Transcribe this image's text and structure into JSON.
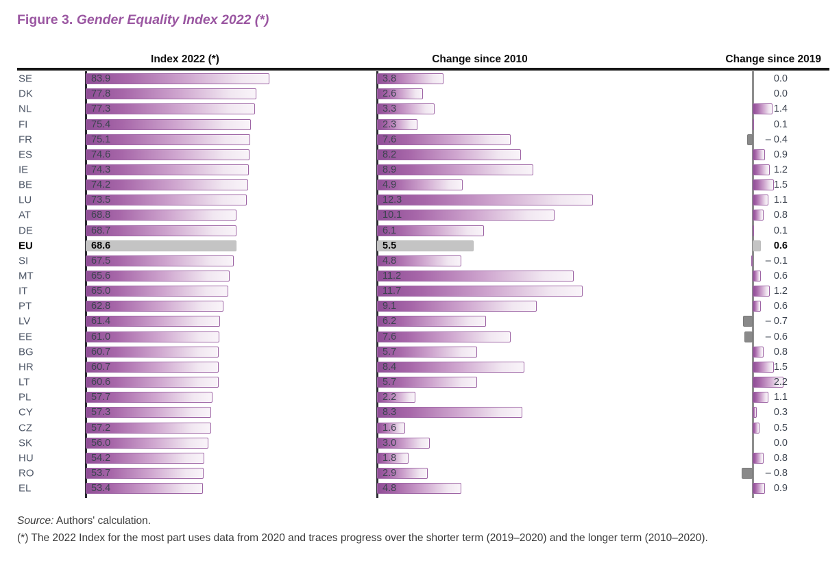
{
  "title": {
    "prefix": "Figure 3.",
    "main": " Gender Equality Index 2022 (*)"
  },
  "headers": {
    "col1": "Index 2022 (*)",
    "col2": "Change since 2010",
    "col3": "Change since 2019"
  },
  "footer": {
    "source_label": "Source:",
    "source_text": " Authors' calculation.",
    "footnote": "(*) The 2022 Index for the most part uses data from 2020 and traces progress over the shorter term (2019–2020) and the longer term (2010–2020)."
  },
  "colors": {
    "title": "#9a56a1",
    "bar_border": "#9d64a4",
    "bar_gradient_start": "#8f4e96",
    "bar_gradient_end": "#f9f4f9",
    "eu_bar": "#c4c4c4",
    "negative_bar": "#898989",
    "axis_dark": "#2a2a30",
    "axis_gray": "#8e8e8e",
    "value_text": "#3d4450",
    "row_label_text": "#4c5565",
    "header_text": "#101010",
    "footnote_text": "#3a3a3a"
  },
  "chart_data": {
    "type": "bar",
    "orientation": "horizontal",
    "title": "Gender Equality Index 2022 (*)",
    "column_headers": [
      "Index 2022 (*)",
      "Change since 2010",
      "Change since 2019"
    ],
    "highlight_row": "EU",
    "legend": "none",
    "grid": false,
    "xlim": {
      "index_2022": [
        0,
        85
      ],
      "change_2010": [
        0,
        12.5
      ],
      "change_2019": [
        -1.0,
        2.5
      ]
    },
    "value_label_format": "one-decimal, negatives shown as – n.n",
    "rows": [
      {
        "code": "SE",
        "index_2022": 83.9,
        "change_2010": 3.8,
        "change_2019": 0.0
      },
      {
        "code": "DK",
        "index_2022": 77.8,
        "change_2010": 2.6,
        "change_2019": 0.0
      },
      {
        "code": "NL",
        "index_2022": 77.3,
        "change_2010": 3.3,
        "change_2019": 1.4
      },
      {
        "code": "FI",
        "index_2022": 75.4,
        "change_2010": 2.3,
        "change_2019": 0.1
      },
      {
        "code": "FR",
        "index_2022": 75.1,
        "change_2010": 7.6,
        "change_2019": -0.4
      },
      {
        "code": "ES",
        "index_2022": 74.6,
        "change_2010": 8.2,
        "change_2019": 0.9
      },
      {
        "code": "IE",
        "index_2022": 74.3,
        "change_2010": 8.9,
        "change_2019": 1.2
      },
      {
        "code": "BE",
        "index_2022": 74.2,
        "change_2010": 4.9,
        "change_2019": 1.5
      },
      {
        "code": "LU",
        "index_2022": 73.5,
        "change_2010": 12.3,
        "change_2019": 1.1
      },
      {
        "code": "AT",
        "index_2022": 68.8,
        "change_2010": 10.1,
        "change_2019": 0.8
      },
      {
        "code": "DE",
        "index_2022": 68.7,
        "change_2010": 6.1,
        "change_2019": 0.1
      },
      {
        "code": "EU",
        "index_2022": 68.6,
        "change_2010": 5.5,
        "change_2019": 0.6,
        "highlight": true
      },
      {
        "code": "SI",
        "index_2022": 67.5,
        "change_2010": 4.8,
        "change_2019": -0.1,
        "change_2019_bar_color": "purple"
      },
      {
        "code": "MT",
        "index_2022": 65.6,
        "change_2010": 11.2,
        "change_2019": 0.6
      },
      {
        "code": "IT",
        "index_2022": 65.0,
        "change_2010": 11.7,
        "change_2019": 1.2
      },
      {
        "code": "PT",
        "index_2022": 62.8,
        "change_2010": 9.1,
        "change_2019": 0.6
      },
      {
        "code": "LV",
        "index_2022": 61.4,
        "change_2010": 6.2,
        "change_2019": -0.7
      },
      {
        "code": "EE",
        "index_2022": 61.0,
        "change_2010": 7.6,
        "change_2019": -0.6
      },
      {
        "code": "BG",
        "index_2022": 60.7,
        "change_2010": 5.7,
        "change_2019": 0.8
      },
      {
        "code": "HR",
        "index_2022": 60.7,
        "change_2010": 8.4,
        "change_2019": 1.5
      },
      {
        "code": "LT",
        "index_2022": 60.6,
        "change_2010": 5.7,
        "change_2019": 2.2
      },
      {
        "code": "PL",
        "index_2022": 57.7,
        "change_2010": 2.2,
        "change_2019": 1.1
      },
      {
        "code": "CY",
        "index_2022": 57.3,
        "change_2010": 8.3,
        "change_2019": 0.3
      },
      {
        "code": "CZ",
        "index_2022": 57.2,
        "change_2010": 1.6,
        "change_2019": 0.5
      },
      {
        "code": "SK",
        "index_2022": 56.0,
        "change_2010": 3.0,
        "change_2019": 0.0
      },
      {
        "code": "HU",
        "index_2022": 54.2,
        "change_2010": 1.8,
        "change_2019": 0.8
      },
      {
        "code": "RO",
        "index_2022": 53.7,
        "change_2010": 2.9,
        "change_2019": -0.8
      },
      {
        "code": "EL",
        "index_2022": 53.4,
        "change_2010": 4.8,
        "change_2019": 0.9
      }
    ]
  }
}
